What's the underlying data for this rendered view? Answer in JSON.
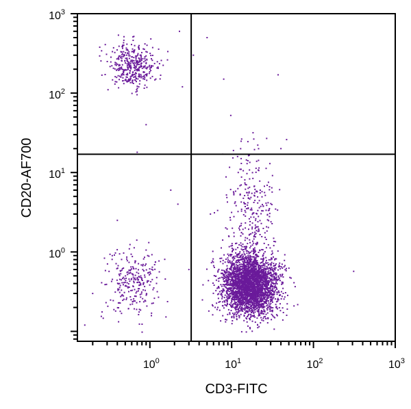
{
  "chart_data": {
    "type": "scatter",
    "title": "",
    "xlabel": "CD3-FITC",
    "ylabel": "CD20-AF700",
    "x_scale": "log",
    "y_scale": "log",
    "xlim": [
      0.13,
      1000
    ],
    "ylim": [
      0.075,
      1000
    ],
    "x_ticks": [
      {
        "base": "10",
        "exp": "0",
        "value": 1
      },
      {
        "base": "10",
        "exp": "1",
        "value": 10
      },
      {
        "base": "10",
        "exp": "2",
        "value": 100
      },
      {
        "base": "10",
        "exp": "3",
        "value": 1000
      }
    ],
    "y_ticks": [
      {
        "base": "10",
        "exp": "0",
        "value": 1
      },
      {
        "base": "10",
        "exp": "1",
        "value": 10
      },
      {
        "base": "10",
        "exp": "2",
        "value": 100
      },
      {
        "base": "10",
        "exp": "3",
        "value": 1000
      }
    ],
    "quadrant_gates": {
      "x": 3.2,
      "y": 17
    },
    "grid": false,
    "point_color": "#6a1a9a",
    "populations": [
      {
        "center": [
          0.6,
          220
        ],
        "spread_log10": [
          0.15,
          0.14
        ],
        "count": 380
      },
      {
        "center": [
          0.62,
          0.42
        ],
        "spread_log10": [
          0.17,
          0.22
        ],
        "count": 260
      },
      {
        "center": [
          17,
          0.38
        ],
        "spread_log10": [
          0.17,
          0.19
        ],
        "count": 3100
      },
      {
        "center": [
          17,
          2.5
        ],
        "spread_log10": [
          0.16,
          0.45
        ],
        "count": 320
      }
    ],
    "outliers": [
      [
        2.3,
        600
      ],
      [
        0.9,
        40
      ],
      [
        2.5,
        120
      ],
      [
        3.4,
        300
      ],
      [
        5.0,
        500
      ],
      [
        8.0,
        150
      ],
      [
        37,
        170
      ],
      [
        47,
        26
      ],
      [
        40,
        20
      ],
      [
        310,
        0.57
      ],
      [
        2.2,
        4.0
      ],
      [
        0.7,
        18
      ],
      [
        1.8,
        6.0
      ],
      [
        0.4,
        2.5
      ],
      [
        0.2,
        0.3
      ],
      [
        0.16,
        0.12
      ],
      [
        3.0,
        0.6
      ],
      [
        5.5,
        3.0
      ]
    ]
  }
}
